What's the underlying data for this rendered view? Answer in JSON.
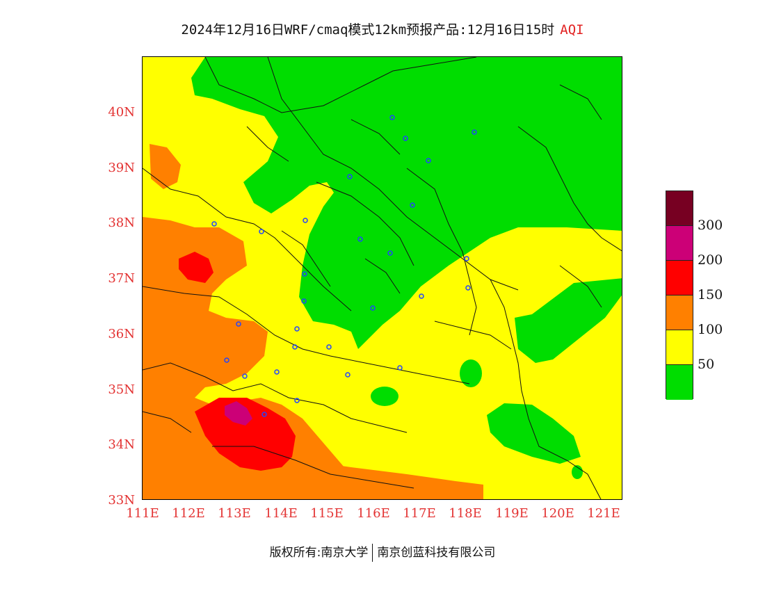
{
  "title": {
    "main": "2024年12月16日WRF/cmaq模式12km预报产品:12月16日15时",
    "variable": "AQI",
    "variable_color": "#e22222"
  },
  "map": {
    "lat_ticks": [
      "33N",
      "34N",
      "35N",
      "36N",
      "37N",
      "38N",
      "39N",
      "40N"
    ],
    "lon_ticks": [
      "111E",
      "112E",
      "113E",
      "114E",
      "115E",
      "116E",
      "117E",
      "118E",
      "119E",
      "120E",
      "121E"
    ],
    "extent": {
      "lon": [
        111,
        121.4
      ],
      "lat": [
        33,
        40.95
      ]
    },
    "tick_label_color": "#e33333",
    "station_marker_color": "#2244ff",
    "fill_colors": {
      "0-50": "#00dd00",
      "50-100": "#ffff00",
      "100-150": "#ff8000",
      "150-200": "#ff0000",
      "200-300": "#cc0077",
      "300+": "#770022"
    }
  },
  "legend": {
    "bands": [
      {
        "color": "#770022"
      },
      {
        "color": "#cc0077"
      },
      {
        "color": "#ff0000"
      },
      {
        "color": "#ff8000"
      },
      {
        "color": "#ffff00"
      },
      {
        "color": "#00dd00"
      }
    ],
    "values": [
      "300",
      "200",
      "150",
      "100",
      "50"
    ]
  },
  "footer": {
    "left": "版权所有:南京大学",
    "right": "南京创蓝科技有限公司"
  }
}
